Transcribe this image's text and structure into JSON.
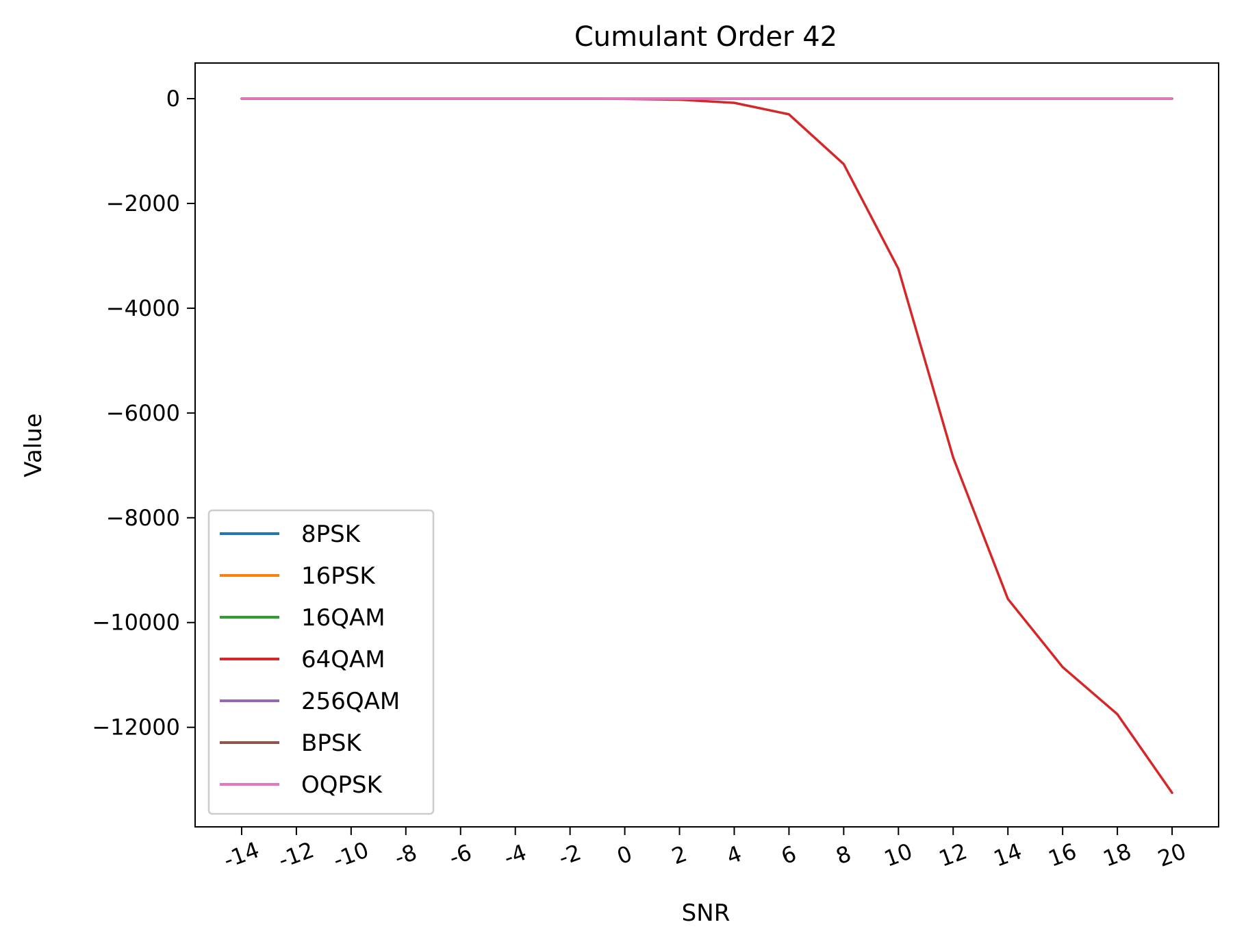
{
  "chart_data": {
    "type": "line",
    "title": "Cumulant Order 42",
    "xlabel": "SNR",
    "ylabel": "Value",
    "x": [
      -14,
      -12,
      -10,
      -8,
      -6,
      -4,
      -2,
      0,
      2,
      4,
      6,
      8,
      10,
      12,
      14,
      16,
      18,
      20
    ],
    "x_tick_labels": [
      "-14",
      "-12",
      "-10",
      "-8",
      "-6",
      "-4",
      "-2",
      "0",
      "2",
      "4",
      "6",
      "8",
      "10",
      "12",
      "14",
      "16",
      "18",
      "20"
    ],
    "y_ticks": [
      0,
      -2000,
      -4000,
      -6000,
      -8000,
      -10000,
      -12000
    ],
    "y_tick_labels": [
      "0",
      "−2000",
      "−4000",
      "−6000",
      "−8000",
      "−10000",
      "−12000"
    ],
    "xlim": [
      -15.7,
      21.7
    ],
    "ylim": [
      -13900,
      680
    ],
    "legend_position": "lower-left",
    "series": [
      {
        "name": "8PSK",
        "color": "#1f77b4",
        "values": [
          0,
          0,
          0,
          0,
          0,
          0,
          0,
          0,
          0,
          0,
          0,
          0,
          0,
          0,
          0,
          0,
          0,
          0
        ]
      },
      {
        "name": "16PSK",
        "color": "#ff7f0e",
        "values": [
          0,
          0,
          0,
          0,
          0,
          0,
          0,
          0,
          0,
          0,
          0,
          0,
          0,
          0,
          0,
          0,
          0,
          0
        ]
      },
      {
        "name": "16QAM",
        "color": "#2ca02c",
        "values": [
          0,
          0,
          0,
          0,
          0,
          0,
          0,
          0,
          0,
          0,
          0,
          0,
          0,
          0,
          0,
          0,
          0,
          0
        ]
      },
      {
        "name": "64QAM",
        "color": "#d62728",
        "values": [
          0,
          0,
          0,
          0,
          0,
          0,
          0,
          -5,
          -20,
          -80,
          -300,
          -1250,
          -3250,
          -6850,
          -9550,
          -10850,
          -11750,
          -13250
        ]
      },
      {
        "name": "256QAM",
        "color": "#9467bd",
        "values": [
          0,
          0,
          0,
          0,
          0,
          0,
          0,
          0,
          0,
          0,
          0,
          0,
          0,
          0,
          0,
          0,
          0,
          0
        ]
      },
      {
        "name": "BPSK",
        "color": "#8c564b",
        "values": [
          0,
          0,
          0,
          0,
          0,
          0,
          0,
          0,
          0,
          0,
          0,
          0,
          0,
          0,
          0,
          0,
          0,
          0
        ]
      },
      {
        "name": "OQPSK",
        "color": "#e377c2",
        "values": [
          0,
          0,
          0,
          0,
          0,
          0,
          0,
          0,
          0,
          0,
          0,
          0,
          0,
          0,
          0,
          0,
          0,
          0
        ]
      }
    ]
  }
}
